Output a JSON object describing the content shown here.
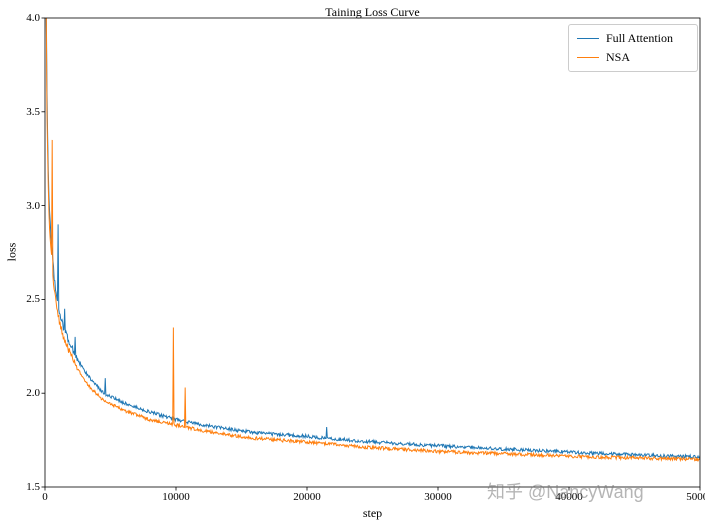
{
  "figure": {
    "title": "Taining Loss Curve",
    "xlabel": "step",
    "ylabel": "loss",
    "watermark": "知乎 @NancyWang"
  },
  "chart_data": {
    "type": "line",
    "title": "Taining Loss Curve",
    "xlabel": "step",
    "ylabel": "loss",
    "xlim": [
      0,
      50000
    ],
    "ylim": [
      1.5,
      4.0
    ],
    "x_ticks": [
      0,
      10000,
      20000,
      30000,
      40000,
      50000
    ],
    "x_tick_labels": [
      "0",
      "10000",
      "20000",
      "30000",
      "40000",
      "50000"
    ],
    "y_ticks": [
      1.5,
      2.0,
      2.5,
      3.0,
      3.5,
      4.0
    ],
    "y_tick_labels": [
      "1.5",
      "2.0",
      "2.5",
      "3.0",
      "3.5",
      "4.0"
    ],
    "grid": false,
    "legend_position": "upper right",
    "sample_start": 50,
    "sample_step": 50,
    "noise_amplitude": 0.009,
    "noise_amplitude_early": 0.018,
    "series": [
      {
        "name": "Full Attention",
        "color": "#1f77b4",
        "control_points": [
          [
            50,
            4.8
          ],
          [
            150,
            3.6
          ],
          [
            300,
            3.05
          ],
          [
            500,
            2.8
          ],
          [
            800,
            2.55
          ],
          [
            1200,
            2.4
          ],
          [
            2000,
            2.25
          ],
          [
            3000,
            2.12
          ],
          [
            4500,
            2.0
          ],
          [
            6000,
            1.95
          ],
          [
            8000,
            1.9
          ],
          [
            10000,
            1.86
          ],
          [
            13000,
            1.82
          ],
          [
            16000,
            1.79
          ],
          [
            20000,
            1.77
          ],
          [
            25000,
            1.74
          ],
          [
            30000,
            1.72
          ],
          [
            36000,
            1.7
          ],
          [
            42000,
            1.68
          ],
          [
            50000,
            1.66
          ]
        ],
        "spikes": [
          [
            1000,
            2.9
          ],
          [
            1500,
            2.45
          ],
          [
            2300,
            2.3
          ],
          [
            4600,
            2.08
          ],
          [
            21500,
            1.82
          ]
        ]
      },
      {
        "name": "NSA",
        "color": "#ff7f0e",
        "control_points": [
          [
            50,
            4.8
          ],
          [
            150,
            3.5
          ],
          [
            300,
            2.95
          ],
          [
            500,
            2.72
          ],
          [
            800,
            2.5
          ],
          [
            1200,
            2.35
          ],
          [
            2000,
            2.2
          ],
          [
            3000,
            2.07
          ],
          [
            4500,
            1.96
          ],
          [
            6000,
            1.91
          ],
          [
            8000,
            1.86
          ],
          [
            10000,
            1.83
          ],
          [
            13000,
            1.79
          ],
          [
            16000,
            1.76
          ],
          [
            20000,
            1.74
          ],
          [
            25000,
            1.71
          ],
          [
            30000,
            1.69
          ],
          [
            36000,
            1.675
          ],
          [
            42000,
            1.66
          ],
          [
            50000,
            1.648
          ]
        ],
        "spikes": [
          [
            550,
            3.35
          ],
          [
            9800,
            2.35
          ],
          [
            10700,
            2.03
          ]
        ]
      }
    ]
  }
}
